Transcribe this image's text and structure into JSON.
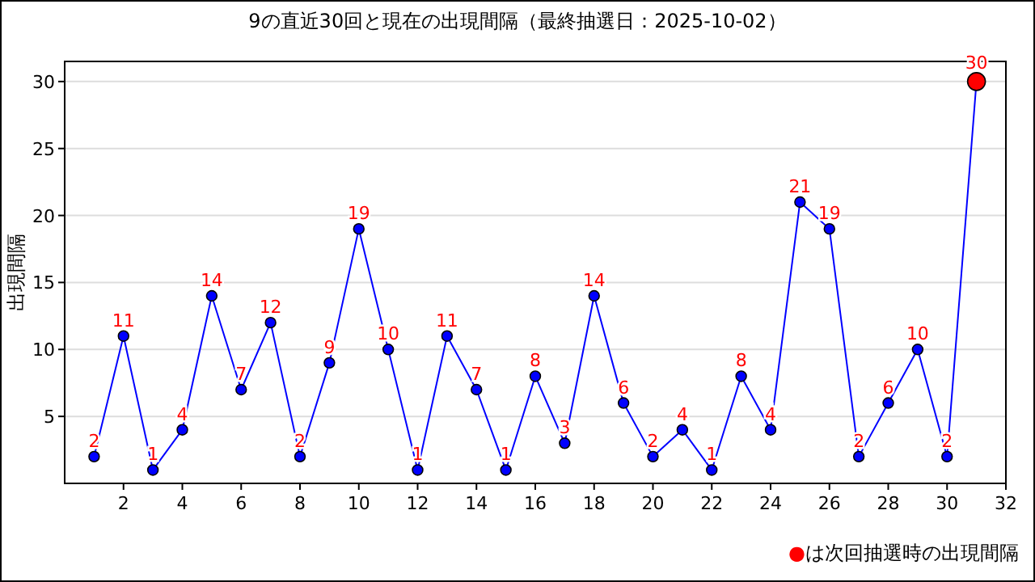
{
  "chart_data": {
    "type": "line",
    "title": "9の直近30回と現在の出現間隔（最終抽選日：2025-10-02）",
    "ylabel": "出現間隔",
    "x": [
      1,
      2,
      3,
      4,
      5,
      6,
      7,
      8,
      9,
      10,
      11,
      12,
      13,
      14,
      15,
      16,
      17,
      18,
      19,
      20,
      21,
      22,
      23,
      24,
      25,
      26,
      27,
      28,
      29,
      30,
      31
    ],
    "series": [
      {
        "color": "#0000ff",
        "colors": [
          "#0000ff",
          "#0000ff",
          "#0000ff",
          "#0000ff",
          "#0000ff",
          "#0000ff",
          "#0000ff",
          "#0000ff",
          "#0000ff",
          "#0000ff",
          "#0000ff",
          "#0000ff",
          "#0000ff",
          "#0000ff",
          "#0000ff",
          "#0000ff",
          "#0000ff",
          "#0000ff",
          "#0000ff",
          "#0000ff",
          "#0000ff",
          "#0000ff",
          "#0000ff",
          "#0000ff",
          "#0000ff",
          "#0000ff",
          "#0000ff",
          "#0000ff",
          "#0000ff",
          "#0000ff",
          "#ff0000"
        ],
        "values": [
          2,
          11,
          1,
          4,
          14,
          7,
          12,
          2,
          9,
          19,
          10,
          1,
          11,
          7,
          1,
          8,
          3,
          14,
          6,
          2,
          4,
          1,
          8,
          4,
          21,
          19,
          2,
          6,
          10,
          2,
          30
        ]
      }
    ],
    "xlim": [
      0,
      32
    ],
    "xticks": [
      2,
      4,
      6,
      8,
      10,
      12,
      14,
      16,
      18,
      20,
      22,
      24,
      26,
      28,
      30,
      32
    ],
    "ylim": [
      0,
      31.5
    ],
    "yticks": [
      5,
      10,
      15,
      20,
      25,
      30
    ],
    "grid": "y",
    "marker": "circle",
    "data_labels": true,
    "annotations": [
      "●は次回抽選時の出現間隔"
    ]
  }
}
